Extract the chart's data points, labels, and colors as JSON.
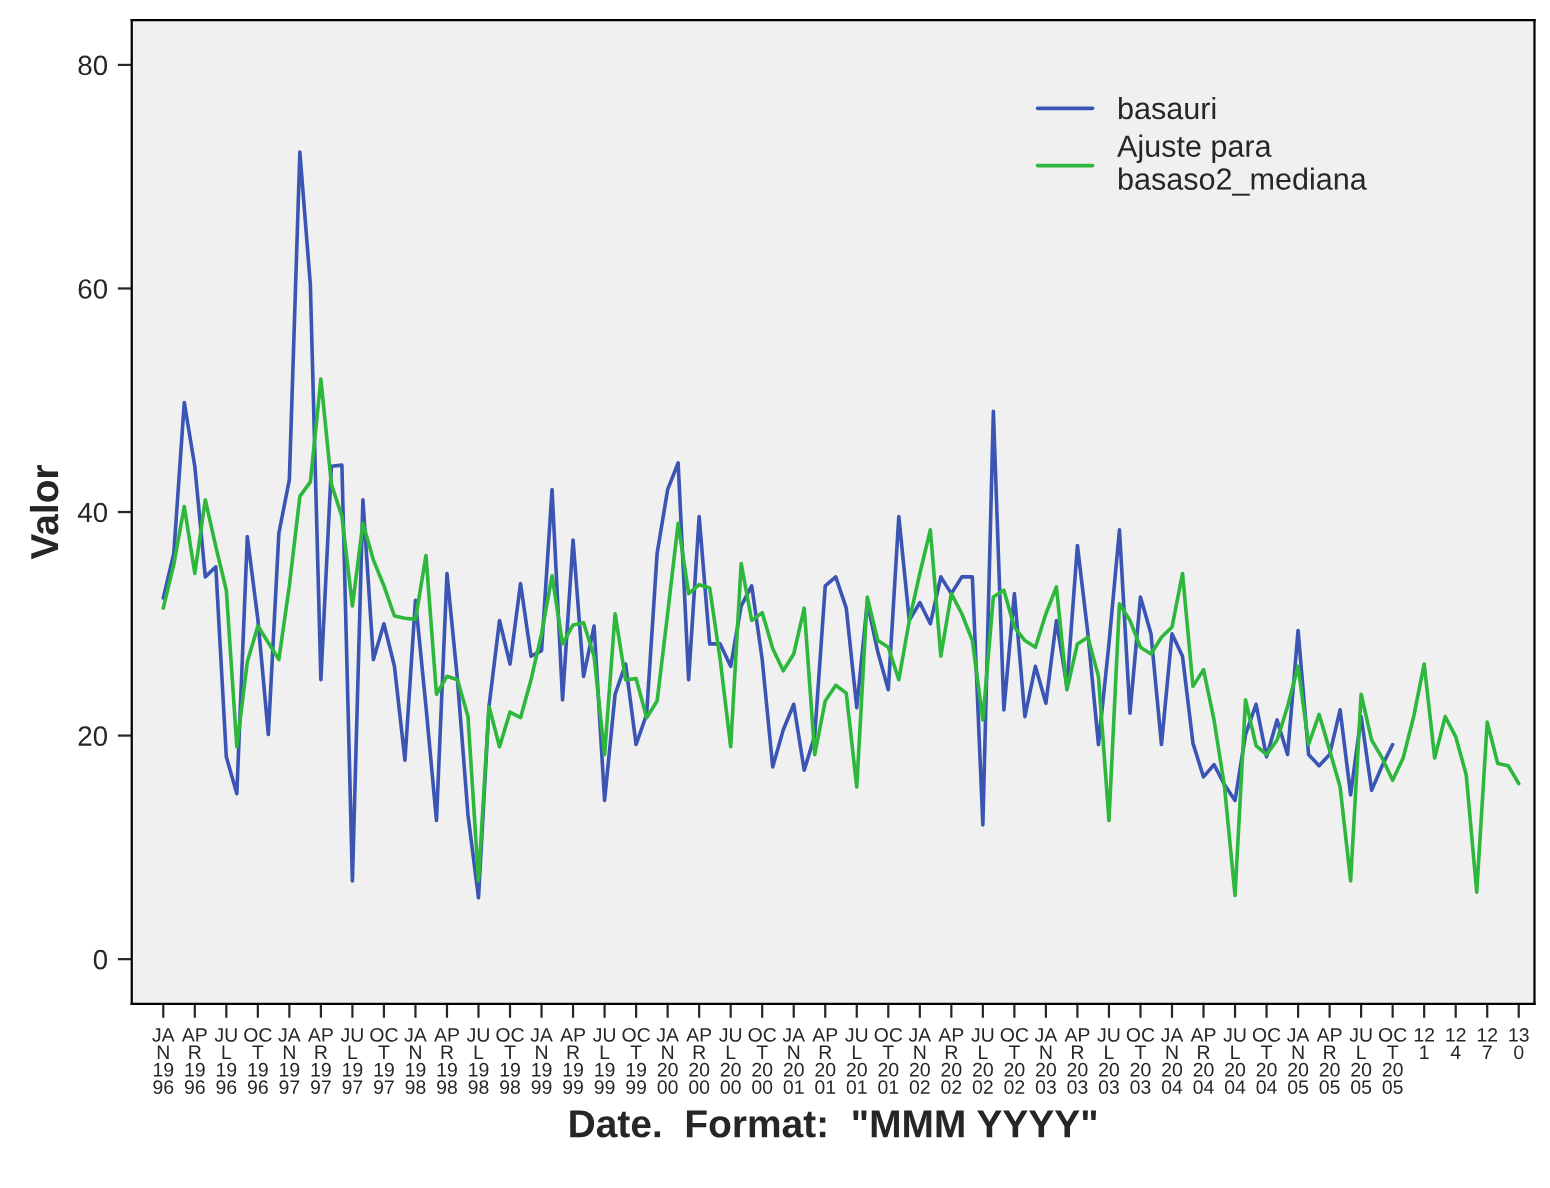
{
  "chart_data": {
    "type": "line",
    "xlabel": "Date.  Format:  \"MMM YYYY\"",
    "ylabel": "Valor",
    "categories": [
      "JAN 1996",
      null,
      null,
      "APR 1996",
      null,
      null,
      "JUL 1996",
      null,
      null,
      "OCT 1996",
      null,
      null,
      "JAN 1997",
      null,
      null,
      "APR 1997",
      null,
      null,
      "JUL 1997",
      null,
      null,
      "OCT 1997",
      null,
      null,
      "JAN 1998",
      null,
      null,
      "APR 1998",
      null,
      null,
      "JUL 1998",
      null,
      null,
      "OCT 1998",
      null,
      null,
      "JAN 1999",
      null,
      null,
      "APR 1999",
      null,
      null,
      "JUL 1999",
      null,
      null,
      "OCT 1999",
      null,
      null,
      "JAN 2000",
      null,
      null,
      "APR 2000",
      null,
      null,
      "JUL 2000",
      null,
      null,
      "OCT 2000",
      null,
      null,
      "JAN 2001",
      null,
      null,
      "APR 2001",
      null,
      null,
      "JUL 2001",
      null,
      null,
      "OCT 2001",
      null,
      null,
      "JAN 2002",
      null,
      null,
      "APR 2002",
      null,
      null,
      "JUL 2002",
      null,
      null,
      "OCT 2002",
      null,
      null,
      "JAN 2003",
      null,
      null,
      "APR 2003",
      null,
      null,
      "JUL 2003",
      null,
      null,
      "OCT 2003",
      null,
      null,
      "JAN 2004",
      null,
      null,
      "APR 2004",
      null,
      null,
      "JUL 2004",
      null,
      null,
      "OCT 2004",
      null,
      null,
      "JAN 2005",
      null,
      null,
      "APR 2005",
      null,
      null,
      "JUL 2005",
      null,
      null,
      "OCT 2005",
      null,
      null,
      "121",
      null,
      null,
      "124",
      null,
      null,
      "127",
      null,
      null,
      "130"
    ],
    "series": [
      {
        "name": "basauri",
        "color": "#3a55b4",
        "values": [
          32.3,
          36.3,
          49.8,
          44.1,
          34.2,
          35.1,
          18.1,
          14.8,
          37.8,
          30.4,
          20.1,
          38.1,
          42.9,
          72.2,
          60.3,
          25,
          44.1,
          44.2,
          7,
          41.1,
          26.8,
          30,
          26.2,
          17.8,
          32.1,
          22.6,
          12.4,
          34.5,
          25,
          12.9,
          5.5,
          22.6,
          30.3,
          26.4,
          33.6,
          27.1,
          27.6,
          42,
          23.2,
          37.5,
          25.3,
          29.8,
          14.2,
          23.7,
          26.4,
          19.2,
          21.9,
          36.3,
          42,
          44.4,
          25,
          39.6,
          28.2,
          28.2,
          26.2,
          31.6,
          33.4,
          26.8,
          17.2,
          20.5,
          22.8,
          16.9,
          20,
          33.4,
          34.2,
          31.4,
          22.5,
          31.9,
          27.5,
          24.1,
          39.6,
          30.3,
          31.9,
          30,
          34.2,
          32.7,
          34.2,
          34.2,
          12,
          49,
          22.3,
          32.7,
          21.7,
          26.2,
          22.9,
          30.3,
          24.4,
          37,
          29.1,
          19.2,
          28.2,
          38.4,
          22,
          32.4,
          29.1,
          19.2,
          29.1,
          27.1,
          19.3,
          16.3,
          17.4,
          15.6,
          14.2,
          20.1,
          22.8,
          18.1,
          21.4,
          18.3,
          29.4,
          18.3,
          17.3,
          18.3,
          22.3,
          14.7,
          21.7,
          15.1,
          17.3,
          19.2,
          null,
          null,
          null,
          null,
          null,
          null,
          null,
          null,
          null,
          null,
          null,
          null
        ]
      },
      {
        "name": "Ajuste para\nbasaso2_mediana",
        "color": "#2db83d",
        "values": [
          31.4,
          35.3,
          40.5,
          34.5,
          41.1,
          36.9,
          33,
          19,
          26.6,
          29.8,
          28.3,
          26.8,
          33.4,
          41.4,
          42.7,
          51.9,
          42.5,
          39.6,
          31.6,
          39,
          35.7,
          33.4,
          30.7,
          30.5,
          30.4,
          36.1,
          23.7,
          25.3,
          25,
          21.7,
          7,
          22.6,
          19,
          22.1,
          21.6,
          25,
          29.1,
          34.3,
          28.2,
          29.9,
          30.1,
          27.1,
          18.3,
          30.9,
          25,
          25.1,
          21.6,
          23.1,
          30.9,
          39,
          32.7,
          33.5,
          33.2,
          26.8,
          19,
          35.4,
          30.3,
          31,
          27.8,
          25.8,
          27.3,
          31.4,
          18.3,
          23.1,
          24.5,
          23.8,
          15.4,
          32.4,
          28.5,
          27.9,
          25,
          30.3,
          34.5,
          38.4,
          27.1,
          32.7,
          30.9,
          28.5,
          21.4,
          32.4,
          33,
          29.7,
          28.5,
          27.9,
          30.9,
          33.3,
          24.1,
          28.2,
          28.8,
          25.3,
          12.4,
          31.8,
          30.3,
          27.9,
          27.3,
          28.8,
          29.7,
          34.5,
          24.4,
          25.9,
          21.4,
          15.4,
          5.7,
          23.2,
          19.1,
          18.3,
          19.6,
          22.6,
          26.2,
          19.2,
          21.9,
          18.7,
          15.4,
          7,
          23.7,
          19.6,
          18,
          16,
          18,
          21.7,
          26.4,
          18,
          21.7,
          19.9,
          16.5,
          6,
          21.2,
          17.5,
          17.3,
          15.7
        ]
      }
    ],
    "ylim": [
      -4,
      84
    ],
    "yticks": [
      0,
      20,
      40,
      60,
      80
    ],
    "grid": false,
    "legend": "top right",
    "marker": "none",
    "line_style": "solid"
  }
}
